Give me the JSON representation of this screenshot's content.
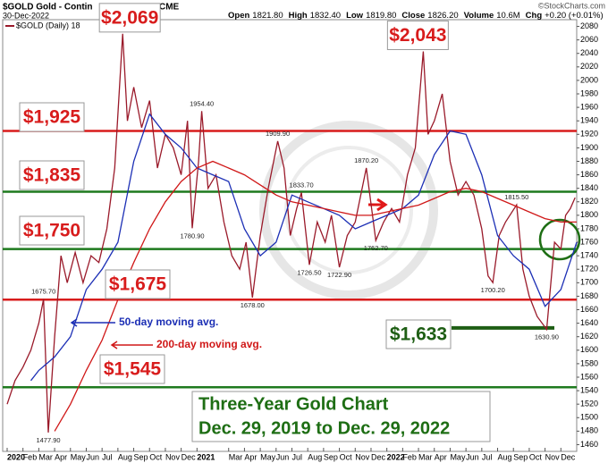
{
  "chart_data": {
    "type": "line",
    "title": "$GOLD Gold - Contin",
    "exchange": "CME",
    "date": "30-Dec-2022",
    "quote": [
      {
        "label": "Open",
        "value": "1821.80"
      },
      {
        "label": "High",
        "value": "1832.40"
      },
      {
        "label": "Low",
        "value": "1819.80"
      },
      {
        "label": "Close",
        "value": "1826.20"
      },
      {
        "label": "Volume",
        "value": "10.6M"
      },
      {
        "label": "Chg",
        "value": "+0.20 (+0.01%)"
      }
    ],
    "credit": "©StockCharts.com",
    "xlim": [
      0,
      36
    ],
    "xticks": [
      {
        "value": 0,
        "label": "2020"
      },
      {
        "value": 1,
        "label": "Feb"
      },
      {
        "value": 2,
        "label": "Mar"
      },
      {
        "value": 3,
        "label": "Apr"
      },
      {
        "value": 4,
        "label": "May"
      },
      {
        "value": 5,
        "label": "Jun"
      },
      {
        "value": 6,
        "label": "Jul"
      },
      {
        "value": 7,
        "label": "Aug"
      },
      {
        "value": 8,
        "label": "Sep"
      },
      {
        "value": 9,
        "label": "Oct"
      },
      {
        "value": 10,
        "label": "Nov"
      },
      {
        "value": 11,
        "label": "Dec"
      },
      {
        "value": 12,
        "label": "2021"
      },
      {
        "value": 14,
        "label": "Mar"
      },
      {
        "value": 15,
        "label": "Apr"
      },
      {
        "value": 16,
        "label": "May"
      },
      {
        "value": 17,
        "label": "Jun"
      },
      {
        "value": 18,
        "label": "Jul"
      },
      {
        "value": 19,
        "label": "Aug"
      },
      {
        "value": 20,
        "label": "Sep"
      },
      {
        "value": 21,
        "label": "Oct"
      },
      {
        "value": 22,
        "label": "Nov"
      },
      {
        "value": 23,
        "label": "Dec"
      },
      {
        "value": 24,
        "label": "2022"
      },
      {
        "value": 25,
        "label": "Feb"
      },
      {
        "value": 26,
        "label": "Mar"
      },
      {
        "value": 27,
        "label": "Apr"
      },
      {
        "value": 28,
        "label": "May"
      },
      {
        "value": 29,
        "label": "Jun"
      },
      {
        "value": 30,
        "label": "Jul"
      },
      {
        "value": 31,
        "label": "Aug"
      },
      {
        "value": 32,
        "label": "Sep"
      },
      {
        "value": 33,
        "label": "Oct"
      },
      {
        "value": 34,
        "label": "Nov"
      },
      {
        "value": 35,
        "label": "Dec"
      }
    ],
    "ylim": [
      1450,
      2090
    ],
    "yticks": [
      1460,
      1480,
      1500,
      1520,
      1540,
      1560,
      1580,
      1600,
      1620,
      1640,
      1660,
      1680,
      1700,
      1720,
      1740,
      1760,
      1780,
      1800,
      1820,
      1840,
      1860,
      1880,
      1900,
      1920,
      1940,
      1960,
      1980,
      2000,
      2020,
      2040,
      2060,
      2080
    ],
    "grid": false,
    "series": [
      {
        "name": "$GOLD (Daily) 18",
        "color": "#9a1a2a",
        "x": [
          0,
          0.5,
          1,
          1.5,
          2,
          2.3,
          2.6,
          3,
          3.4,
          3.8,
          4.3,
          4.8,
          5.3,
          5.8,
          6.3,
          6.8,
          7.3,
          7.6,
          8,
          8.5,
          9,
          9.5,
          10,
          10.5,
          11,
          11.4,
          11.7,
          12.1,
          12.3,
          12.7,
          13.2,
          13.7,
          14.2,
          14.7,
          15.1,
          15.5,
          16,
          16.5,
          17.1,
          17.5,
          17.9,
          18.3,
          18.6,
          19.1,
          19.6,
          20.1,
          20.5,
          21,
          21.5,
          22,
          22.7,
          23.3,
          23.8,
          24.3,
          24.8,
          25.3,
          25.8,
          26.3,
          26.6,
          27,
          27.5,
          28,
          28.5,
          29,
          29.5,
          30,
          30.4,
          30.7,
          31.1,
          31.5,
          32.2,
          32.6,
          33,
          33.5,
          34.1,
          34.6,
          35,
          35.3,
          35.6,
          35.9
        ],
        "values": [
          1520,
          1555,
          1575,
          1600,
          1640,
          1675.7,
          1477.9,
          1620,
          1740,
          1700,
          1745,
          1700,
          1740,
          1730,
          1780,
          1870,
          2069,
          1940,
          1990,
          1930,
          1970,
          1870,
          1920,
          1900,
          1860,
          1940,
          1780.9,
          1880,
          1954.4,
          1840,
          1860,
          1790,
          1740,
          1720,
          1760,
          1678,
          1770,
          1840,
          1909.9,
          1870,
          1770,
          1810,
          1833.7,
          1726.5,
          1790,
          1760,
          1800,
          1722.9,
          1770,
          1790,
          1870.2,
          1762.7,
          1790,
          1810,
          1790,
          1860,
          1900,
          2043,
          1920,
          1940,
          1980,
          1880,
          1830,
          1850,
          1830,
          1780,
          1710,
          1700.2,
          1770,
          1790,
          1815.5,
          1720,
          1680,
          1650,
          1630.9,
          1760,
          1750,
          1800,
          1810,
          1826.2
        ]
      },
      {
        "name": "50-day moving avg.",
        "color": "#1c2fb5",
        "x": [
          1.5,
          2,
          3,
          4,
          5,
          6,
          7,
          8,
          9,
          10,
          11,
          12,
          13,
          14,
          15,
          16,
          17,
          18,
          19,
          20,
          21,
          22,
          23,
          24,
          25,
          26,
          27,
          28,
          29,
          30,
          31,
          32,
          33,
          34,
          35,
          36
        ],
        "values": [
          1555,
          1570,
          1590,
          1620,
          1690,
          1720,
          1760,
          1880,
          1950,
          1920,
          1900,
          1870,
          1860,
          1850,
          1780,
          1740,
          1760,
          1830,
          1820,
          1810,
          1800,
          1780,
          1790,
          1800,
          1810,
          1830,
          1890,
          1925,
          1920,
          1860,
          1770,
          1740,
          1720,
          1665,
          1690,
          1760
        ]
      },
      {
        "name": "200-day moving avg.",
        "color": "#d01818",
        "x": [
          3,
          4,
          5,
          6,
          7,
          8,
          9,
          10,
          11,
          12,
          13,
          14,
          15,
          16,
          17,
          18,
          19,
          20,
          21,
          22,
          23,
          24,
          25,
          26,
          27,
          28,
          29,
          30,
          31,
          32,
          33,
          34,
          35,
          36
        ],
        "values": [
          1480,
          1520,
          1570,
          1615,
          1675,
          1730,
          1780,
          1820,
          1850,
          1870,
          1880,
          1870,
          1860,
          1845,
          1830,
          1820,
          1815,
          1810,
          1805,
          1800,
          1800,
          1805,
          1810,
          1815,
          1825,
          1835,
          1840,
          1835,
          1825,
          1815,
          1805,
          1795,
          1790,
          1790
        ]
      }
    ],
    "levels": [
      {
        "value": 1925,
        "label": "$1,925",
        "color": "#d81c1c"
      },
      {
        "value": 1835,
        "label": "$1,835",
        "color": "#1e7a1e"
      },
      {
        "value": 1750,
        "label": "$1,750",
        "color": "#1e7a1e"
      },
      {
        "value": 1675,
        "label": "$1,675",
        "color": "#d81c1c"
      },
      {
        "value": 1633,
        "label": "$1,633",
        "color": "#1e5e14"
      },
      {
        "value": 1545,
        "label": "$1,545",
        "color": "#1e7a1e"
      }
    ],
    "peaks": [
      {
        "x": 7.3,
        "value": 2069,
        "label": "$2,069"
      },
      {
        "x": 26.3,
        "value": 2043,
        "label": "$2,043"
      }
    ],
    "annotations": [
      {
        "x": 2.3,
        "value": 1675.7,
        "label": "1675.70"
      },
      {
        "x": 2.6,
        "value": 1477.9,
        "label": "1477.90"
      },
      {
        "x": 11.7,
        "value": 1780.9,
        "label": "1780.90"
      },
      {
        "x": 12.3,
        "value": 1954.4,
        "label": "1954.40"
      },
      {
        "x": 15.5,
        "value": 1678,
        "label": "1678.00"
      },
      {
        "x": 17.1,
        "value": 1909.9,
        "label": "1909.90"
      },
      {
        "x": 18.6,
        "value": 1833.7,
        "label": "1833.70"
      },
      {
        "x": 19.1,
        "value": 1726.5,
        "label": "1726.50"
      },
      {
        "x": 21,
        "value": 1722.9,
        "label": "1722.90"
      },
      {
        "x": 22.7,
        "value": 1870.2,
        "label": "1870.20"
      },
      {
        "x": 23.3,
        "value": 1762.7,
        "label": "1762.70"
      },
      {
        "x": 30.7,
        "value": 1700.2,
        "label": "1700.20"
      },
      {
        "x": 32.2,
        "value": 1815.5,
        "label": "1815.50"
      },
      {
        "x": 34.1,
        "value": 1630.9,
        "label": "1630.90"
      }
    ],
    "caption": [
      "Three-Year Gold Chart",
      "Dec. 29, 2019 to Dec. 29, 2022"
    ]
  }
}
